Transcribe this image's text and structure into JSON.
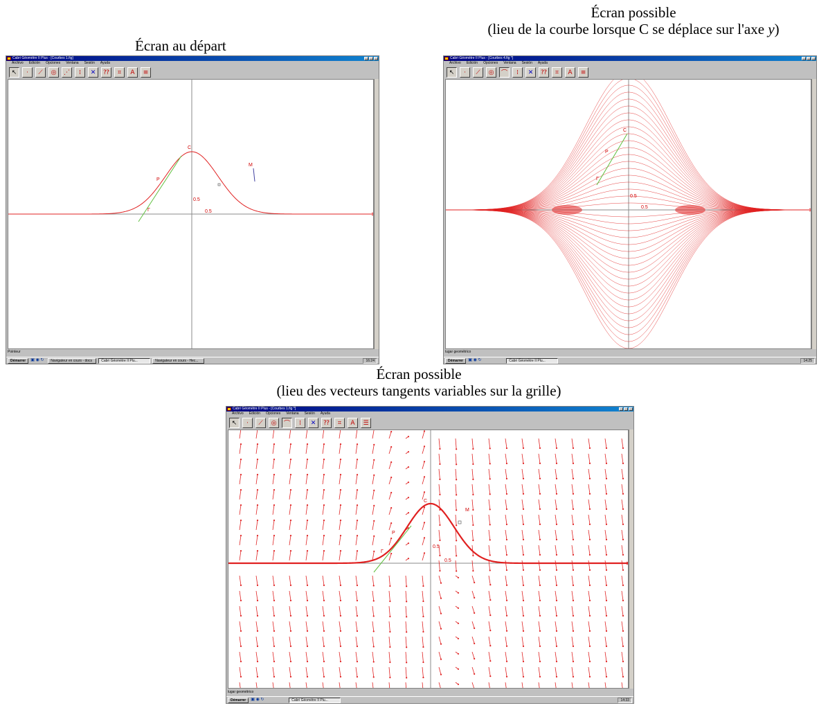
{
  "captions": {
    "screen1": "Écran au départ",
    "screen2_line1": "Écran possible",
    "screen2_line2_before": "(lieu de la courbe lorsque C se déplace sur l'axe ",
    "screen2_line2_var": "y",
    "screen2_line2_after": ")",
    "screen3_line1": "Écran possible",
    "screen3_line2": "(lieu des vecteurs tangents variables sur la grille)"
  },
  "app": {
    "title1": "Cabri Géomètre II Plus - [Courbes 1.fig]",
    "title2": "Cabri Géomètre II Plus - [Courbes 4.fig *]",
    "title3": "Cabri Géomètre II Plus - [Courbes 1.fig *]",
    "menu": [
      "Archivo",
      "Edición",
      "Opciones",
      "Ventana",
      "Sesión",
      "Ayuda"
    ],
    "tool_icons": [
      "pointer-icon",
      "point-icon",
      "line-icon",
      "circle-icon",
      "curve-icon",
      "symmetry-icon",
      "vector-icon",
      "measure-icon",
      "calculate-icon",
      "text-icon",
      "thickness-icon"
    ]
  },
  "screen1": {
    "labels": {
      "C": "C",
      "P": "P",
      "M": "M",
      "gamma": "Γ",
      "half_y": "0.5",
      "half_x": "0.5"
    },
    "status": "Pointeur",
    "taskbar": {
      "start": "Démarrer",
      "tasks": [
        "Navigateur en cours - docs",
        "Cabri Géomètre II Plu...",
        "Navigateur en cours - Hec..."
      ],
      "clock": "16:24"
    }
  },
  "screen2": {
    "labels": {
      "C": "C",
      "P": "P",
      "gamma": "Γ",
      "half_y": "0.5",
      "half_x": "0.5"
    },
    "status": "lugar geométrico",
    "taskbar": {
      "start": "Démarrer",
      "tasks": [
        "Cabri Géomètre II Plu..."
      ],
      "clock": "14:25"
    }
  },
  "screen3": {
    "labels": {
      "C": "C",
      "P": "P",
      "M": "M",
      "gamma": "Γ",
      "half_y": "0.5",
      "half_x": "0.5"
    },
    "status": "lugar geométrico",
    "taskbar": {
      "start": "Démarrer",
      "tasks": [
        "Cabri Géomètre II Plu..."
      ],
      "clock": "14:33"
    }
  },
  "colors": {
    "curve": "#e02020",
    "tangent": "#60c040",
    "axis": "#8a8a8a",
    "title": "#000080"
  }
}
